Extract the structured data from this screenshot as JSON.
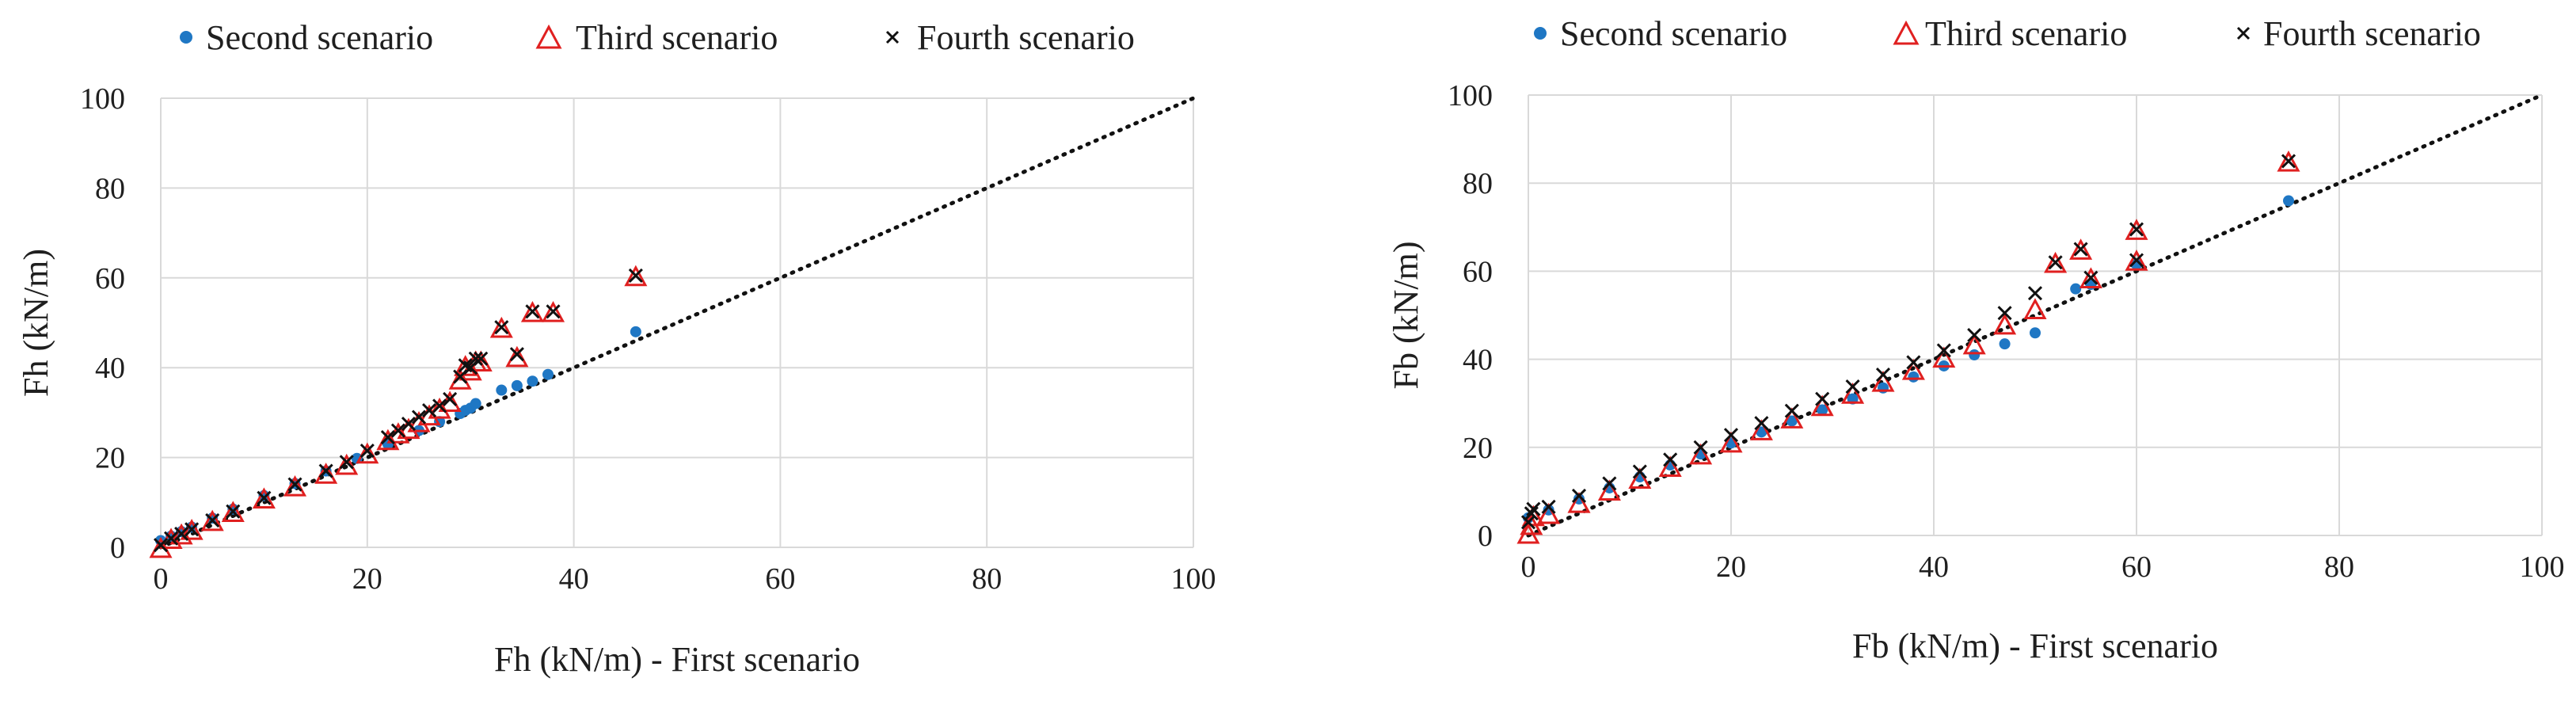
{
  "colors": {
    "second": "#1f77c4",
    "third": "#e02020",
    "fourth": "#111111",
    "grid": "#d9d9d9",
    "identity": "#111111"
  },
  "legend_labels": {
    "second": "Second scenario",
    "third": "Third scenario",
    "fourth": "Fourth scenario"
  },
  "chart_data": [
    {
      "type": "scatter",
      "xlabel": "Fh (kN/m) - First scenario",
      "ylabel": "Fh (kN/m)",
      "xlim": [
        0,
        100
      ],
      "ylim": [
        0,
        100
      ],
      "xticks": [
        "0",
        "20",
        "40",
        "60",
        "80",
        "100"
      ],
      "yticks": [
        "0",
        "20",
        "40",
        "60",
        "80",
        "100"
      ],
      "grid": true,
      "legend_position": "top",
      "reference_line": {
        "style": "dotted",
        "from": [
          0,
          0
        ],
        "to": [
          100,
          100
        ]
      },
      "series": [
        {
          "name": "Second scenario",
          "marker": "circle",
          "x": [
            0,
            1,
            2,
            3,
            5,
            7,
            10,
            13,
            16,
            19,
            22,
            25,
            27,
            29,
            29.5,
            30,
            30.5,
            33,
            34.5,
            36,
            37.5,
            46
          ],
          "y": [
            1.5,
            2.5,
            3.5,
            4.5,
            6.5,
            8.5,
            11.5,
            14.2,
            17,
            19.8,
            23,
            26,
            28,
            29.8,
            30.5,
            31,
            32,
            35,
            36,
            37,
            38.5,
            48
          ]
        },
        {
          "name": "Third scenario",
          "marker": "triangle",
          "x": [
            0,
            1,
            2,
            3,
            5,
            7,
            10,
            13,
            16,
            18,
            20,
            22,
            23,
            24,
            25,
            26,
            27,
            28,
            29,
            29.5,
            30,
            30.5,
            31,
            33,
            34.5,
            36,
            38,
            46
          ],
          "y": [
            -0.5,
            1.5,
            2.5,
            3.5,
            5.5,
            7.5,
            10.5,
            13.2,
            16,
            18,
            20.5,
            23.5,
            25,
            26,
            27.5,
            29,
            30.5,
            32,
            37,
            40,
            39,
            41,
            41,
            48.5,
            42,
            52,
            52,
            60
          ]
        },
        {
          "name": "Fourth scenario",
          "marker": "cross",
          "x": [
            0,
            1,
            2,
            3,
            5,
            7,
            10,
            13,
            16,
            18,
            20,
            22,
            23,
            24,
            25,
            26,
            27,
            28,
            29,
            29.5,
            30,
            30.5,
            31,
            33,
            34.5,
            36,
            38,
            46
          ],
          "y": [
            0.5,
            2,
            3,
            4,
            6,
            8,
            11,
            14,
            17,
            19,
            21.5,
            24.5,
            26,
            27.5,
            29,
            30.5,
            31.5,
            33,
            38,
            40.5,
            40,
            42,
            42,
            49,
            43,
            52.5,
            52.5,
            60.5
          ]
        }
      ]
    },
    {
      "type": "scatter",
      "xlabel": "Fb (kN/m) - First scenario",
      "ylabel": "Fb (kN/m)",
      "xlim": [
        0,
        100
      ],
      "ylim": [
        0,
        100
      ],
      "xticks": [
        "0",
        "20",
        "40",
        "60",
        "80",
        "100"
      ],
      "yticks": [
        "0",
        "20",
        "40",
        "60",
        "80",
        "100"
      ],
      "grid": true,
      "legend_position": "top",
      "reference_line": {
        "style": "dotted",
        "from": [
          0,
          0
        ],
        "to": [
          100,
          100
        ]
      },
      "series": [
        {
          "name": "Second scenario",
          "marker": "circle",
          "x": [
            0,
            2,
            5,
            8,
            11,
            14,
            17,
            20,
            23,
            26,
            29,
            32,
            35,
            38,
            41,
            44,
            47,
            50,
            54,
            55.5,
            60,
            75
          ],
          "y": [
            4,
            5.8,
            8.3,
            10.8,
            13.3,
            16,
            18.5,
            21,
            23.5,
            26,
            28.5,
            31,
            33.5,
            36,
            38.5,
            41,
            43.5,
            46,
            56,
            57,
            61.5,
            76
          ]
        },
        {
          "name": "Third scenario",
          "marker": "triangle",
          "x": [
            0,
            0.3,
            0.5,
            2,
            5,
            8,
            11,
            14,
            17,
            20,
            23,
            26,
            29,
            32,
            35,
            38,
            41,
            44,
            47,
            50,
            52,
            54.5,
            55.5,
            60,
            60,
            75
          ],
          "y": [
            0,
            2,
            4,
            4.5,
            7,
            9.8,
            12.5,
            15.2,
            18,
            20.7,
            23.5,
            26.2,
            29,
            31.8,
            34.5,
            37.2,
            40,
            43,
            47.5,
            51,
            61.5,
            64.5,
            58,
            69,
            62,
            84.5
          ]
        },
        {
          "name": "Fourth scenario",
          "marker": "cross",
          "x": [
            0,
            0.3,
            0.5,
            2,
            5,
            8,
            11,
            14,
            17,
            20,
            23,
            26,
            29,
            32,
            35,
            38,
            41,
            44,
            47,
            50,
            52,
            54.5,
            55.5,
            60,
            60,
            75
          ],
          "y": [
            3,
            5,
            6,
            6.5,
            9,
            11.8,
            14.5,
            17.2,
            20,
            22.8,
            25.5,
            28.3,
            31,
            33.8,
            36.5,
            39.3,
            42,
            45.5,
            50.5,
            55,
            62,
            65,
            58.5,
            69.5,
            62.5,
            85
          ]
        }
      ]
    }
  ]
}
